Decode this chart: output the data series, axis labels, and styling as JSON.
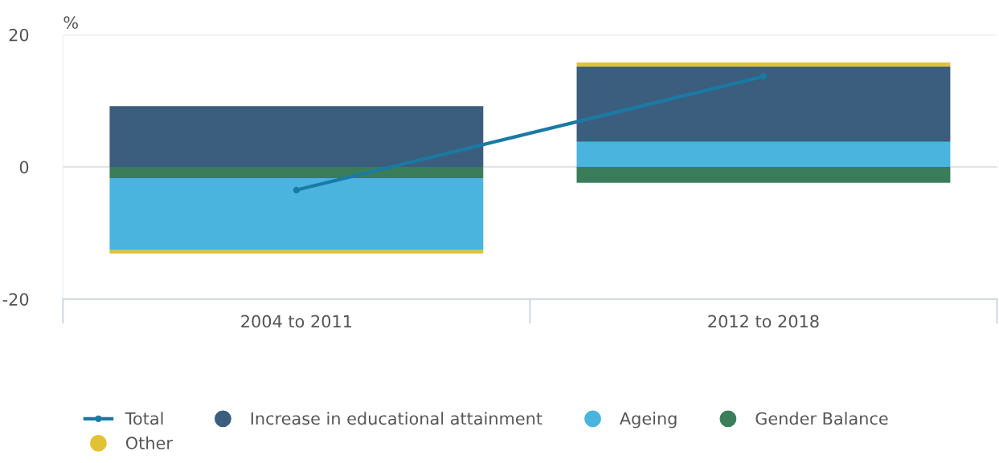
{
  "chart_data": {
    "type": "bar",
    "stacked": true,
    "ylabel": "%",
    "categories": [
      "2004 to 2011",
      "2012 to 2018"
    ],
    "series": [
      {
        "name": "Gender Balance",
        "color": "#3a7d5b",
        "values": [
          -1.7,
          -2.4
        ]
      },
      {
        "name": "Ageing",
        "color": "#4ab4de",
        "values": [
          -10.9,
          3.8
        ]
      },
      {
        "name": "Increase in educational attainment",
        "color": "#3b5e7e",
        "values": [
          9.2,
          11.4
        ]
      },
      {
        "name": "Other",
        "color": "#e1c233",
        "values": [
          -0.5,
          0.6
        ]
      },
      {
        "name": "Total",
        "type": "line",
        "color": "#1a7aa4",
        "marker": "circle",
        "values": [
          -3.5,
          13.7
        ]
      }
    ],
    "ylim": [
      -20,
      20
    ],
    "yticks": [
      -20,
      0,
      20
    ],
    "grid": "y",
    "legend": "bottom"
  }
}
